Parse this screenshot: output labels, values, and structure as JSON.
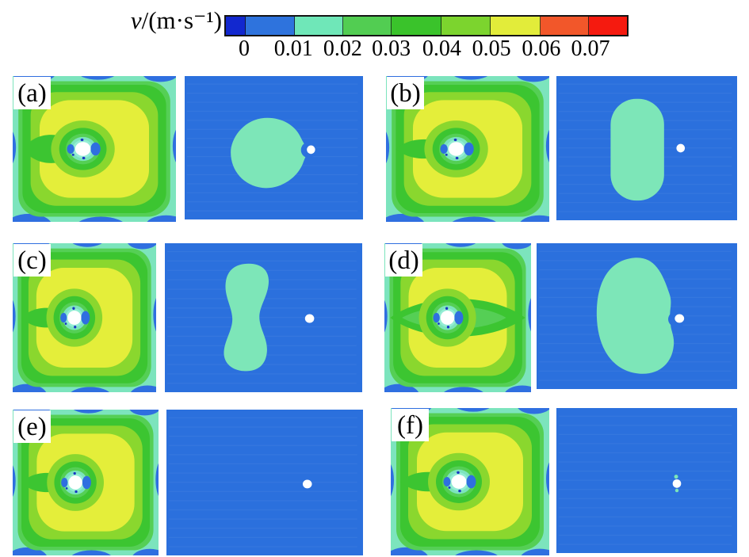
{
  "figure": {
    "colorbar": {
      "label_symbol": "v",
      "label_rest": "/(m·s⁻¹)",
      "tick_labels": [
        "0",
        "0.01",
        "0.02",
        "0.03",
        "0.04",
        "0.05",
        "0.06",
        "0.07"
      ],
      "segment_colors": [
        "#1228cf",
        "#2e73dd",
        "#6fe7b8",
        "#52cd52",
        "#3ac32b",
        "#7cd42e",
        "#e2ec3a",
        "#f2572a",
        "#f51a0f"
      ]
    },
    "palette": {
      "background_blue": "#2b70dd",
      "edge_blue": "#2f6fe0",
      "dark_blue": "#1836c4",
      "rim_teal": "#7ce4bd",
      "blob_teal": "#7de6b8",
      "cyan": "#93edd4",
      "light_green": "#55cf55",
      "green": "#3cc531",
      "yellow_green": "#8ad72e",
      "yellow": "#e4ee3a",
      "hole_white": "#ffffff"
    },
    "panels": [
      {
        "label": "(a)",
        "left_variant": "wide_wedge",
        "right_blob": "d_shape"
      },
      {
        "label": "(b)",
        "left_variant": "standard",
        "right_blob": "capsule"
      },
      {
        "label": "(c)",
        "left_variant": "standard",
        "right_blob": "peanut"
      },
      {
        "label": "(d)",
        "left_variant": "eye",
        "right_blob": "kidney"
      },
      {
        "label": "(e)",
        "left_variant": "standard",
        "right_blob": "none"
      },
      {
        "label": "(f)",
        "left_variant": "standard",
        "right_blob": "specks"
      }
    ]
  },
  "chart_data": {
    "type": "heatmap",
    "title": "Velocity magnitude contour panels (a)–(f), each with a square stirred-cell cross-section view (left) and a rectangular plan view (right)",
    "colorbar": {
      "label": "v/(m·s⁻¹)",
      "orientation": "horizontal",
      "ticks": [
        0,
        0.01,
        0.02,
        0.03,
        0.04,
        0.05,
        0.06,
        0.07
      ],
      "segment_colors": [
        "#1228cf",
        "#2e73dd",
        "#6fe7b8",
        "#52cd52",
        "#3ac32b",
        "#7cd42e",
        "#e2ec3a",
        "#f2572a",
        "#f51a0f"
      ],
      "note": "narrow dark-blue band below 0 tick and narrow red band above 0.07 tick"
    },
    "panels": [
      {
        "label": "(a)",
        "left_view": "square contour: yellow core ≈0.05 m/s, yellow-green and green rings ≈0.03–0.05, teal rim ≈0.01–0.02, blue pockets ≈0–0.01 at edges, white hub left of centre with small blue spots",
        "right_view": "blue field ≈0–0.01 m/s with D-shaped teal region ≈0.01–0.02 m/s; white probe dot at right edge of the blob (~70% width, mid-height)"
      },
      {
        "label": "(b)",
        "left_view": "square contour similar to (a) with slightly larger yellow core",
        "right_view": "blue field with vertical capsule-shaped teal region left of centre; separate white dot at ~69% width, mid-height"
      },
      {
        "label": "(c)",
        "left_view": "square contour with broad yellow interior",
        "right_view": "blue field with vertical peanut-shaped (waisted) teal region; white dot at ~73% width, mid-height"
      },
      {
        "label": "(d)",
        "left_view": "square contour with horizontal green eye-shaped band through the hub",
        "right_view": "blue field with largest kidney-shaped teal region, notched at the white dot (~72% width, mid-height)"
      },
      {
        "label": "(e)",
        "left_view": "square contour similar to (c)",
        "right_view": "uniform blue field ≈0–0.01 m/s with only the white dot (~73% width, mid-height)"
      },
      {
        "label": "(f)",
        "left_view": "square contour similar to (b)",
        "right_view": "uniform blue field with white dot and tiny teal specks above and below it (~70% width, mid-height)"
      }
    ]
  }
}
